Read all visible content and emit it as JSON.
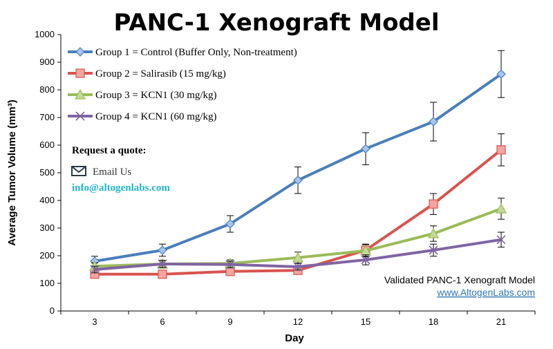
{
  "chart_data": {
    "type": "line",
    "title": "PANC-1 Xenograft Model",
    "xlabel": "Day",
    "ylabel": "Average Tumor Volume (mm³)",
    "x": [
      3,
      6,
      9,
      12,
      15,
      18,
      21
    ],
    "ylim": [
      0,
      1000
    ],
    "yticks": [
      0,
      100,
      200,
      300,
      400,
      500,
      600,
      700,
      800,
      900,
      1000
    ],
    "legend_position": "top-left",
    "series": [
      {
        "name": "Group 1 = Control (Buffer Only, Non-treatment)",
        "color": "#4a7ebb",
        "marker": "diamond",
        "values": [
          180,
          220,
          315,
          473,
          587,
          685,
          857
        ],
        "errors": [
          18,
          22,
          30,
          48,
          58,
          70,
          85
        ]
      },
      {
        "name": "Group 2 = Salirasib (15 mg/kg)",
        "color": "#d9534f",
        "marker": "square",
        "values": [
          133,
          133,
          143,
          147,
          220,
          387,
          583
        ],
        "errors": [
          10,
          10,
          12,
          12,
          22,
          38,
          58
        ]
      },
      {
        "name": "Group 3 = KCN1 (30 mg/kg)",
        "color": "#9bbb59",
        "marker": "triangle",
        "values": [
          162,
          170,
          172,
          193,
          218,
          280,
          370
        ],
        "errors": [
          12,
          13,
          13,
          20,
          22,
          28,
          38
        ]
      },
      {
        "name": "Group 4 = KCN1 (60 mg/kg)",
        "color": "#8064a2",
        "marker": "x",
        "values": [
          150,
          170,
          168,
          160,
          185,
          220,
          258
        ],
        "errors": [
          12,
          13,
          12,
          12,
          18,
          22,
          27
        ]
      }
    ]
  },
  "annotations": {
    "quote_heading": "Request a quote:",
    "email_label": "Email Us",
    "email_address": "info@altogenlabs.com",
    "validated_text": "Validated PANC-1 Xenograft Model",
    "website": "www.AltogenLabs.com",
    "mail_icon": "envelope-icon"
  }
}
